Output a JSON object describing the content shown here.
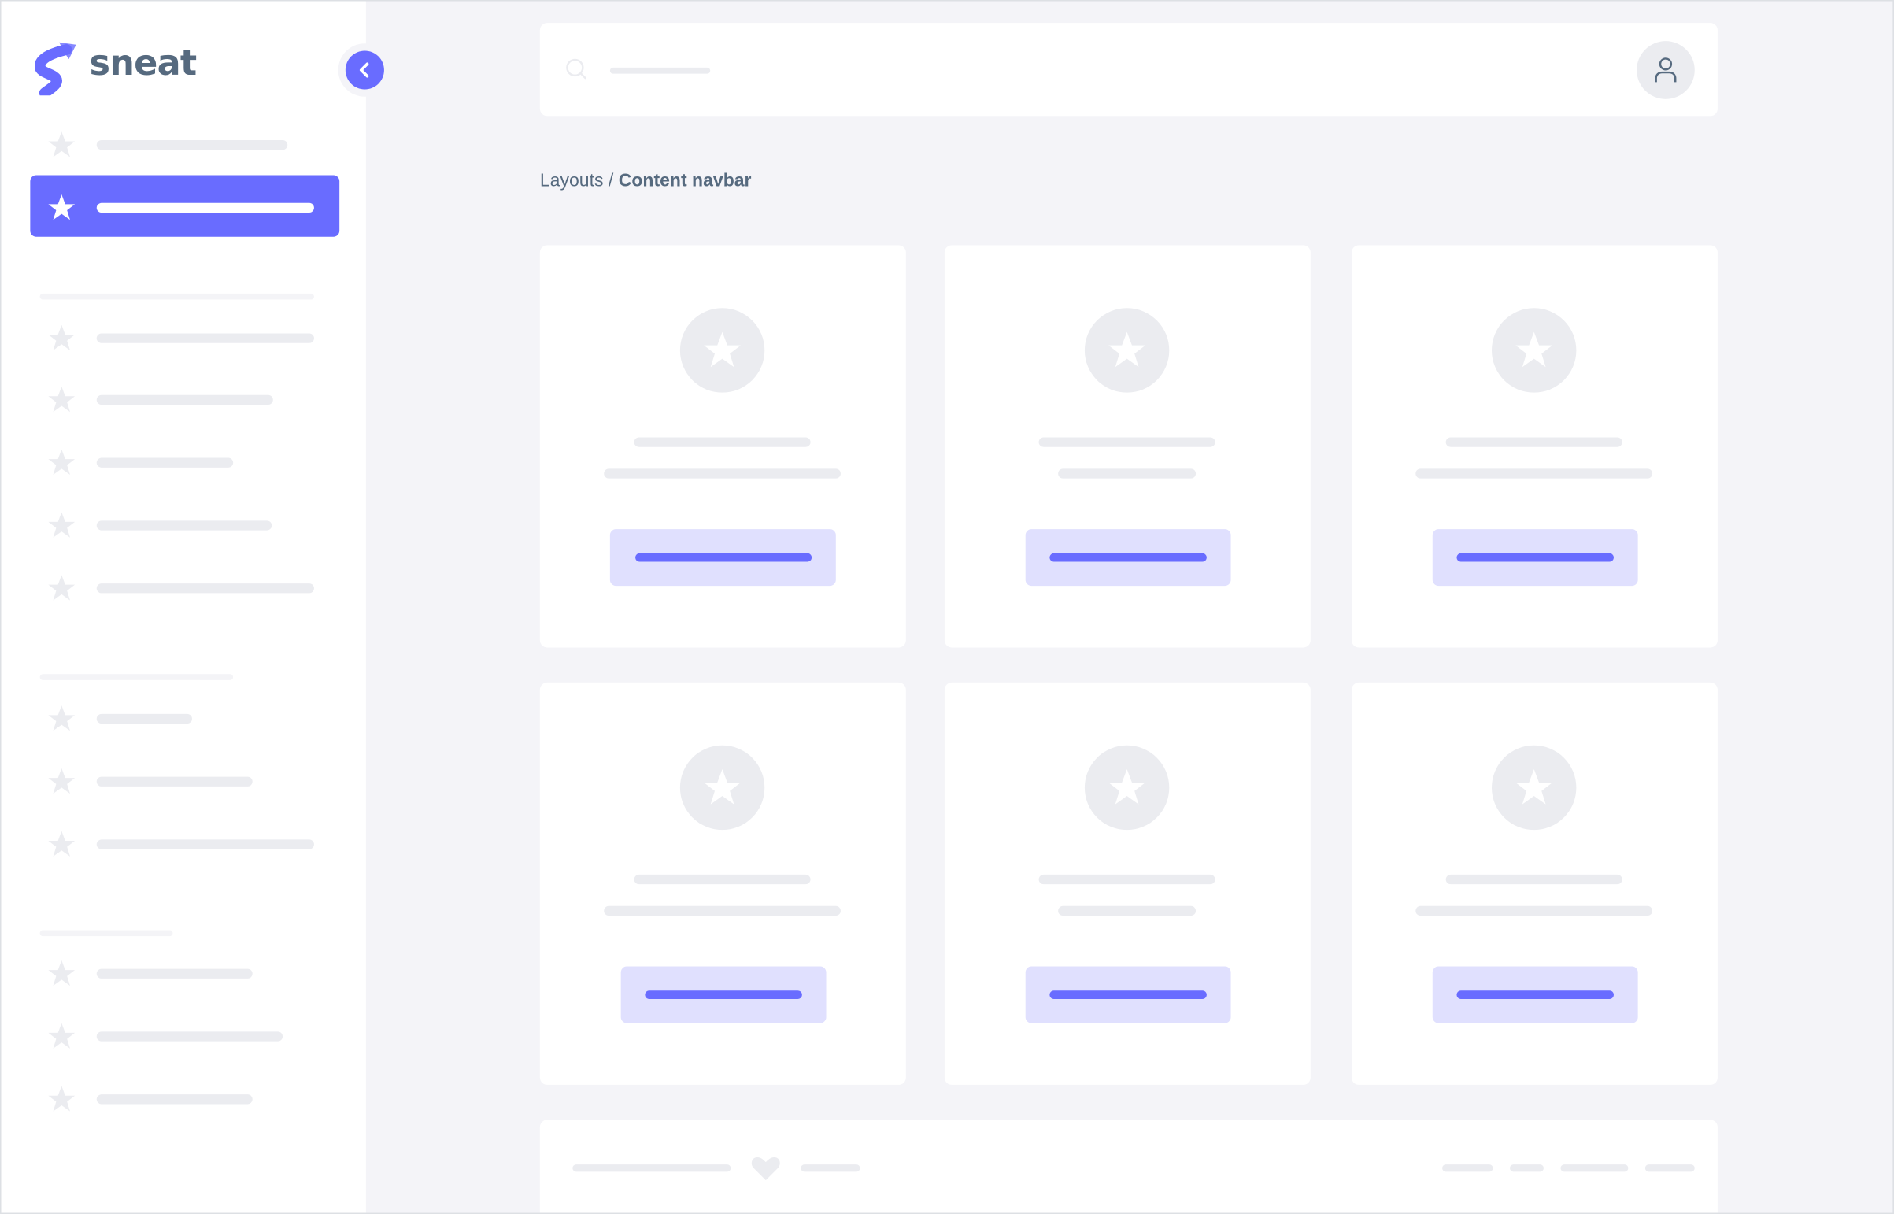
{
  "brand": {
    "name": "sneat",
    "logo_color": "#696cff"
  },
  "colors": {
    "primary": "#696cff",
    "primary_light": "#e0e0fe",
    "skeleton": "#ebecf0",
    "background": "#f4f4f8",
    "text": "#566a7f"
  },
  "sidebar": {
    "collapse_icon": "chevron-left-icon",
    "item_icon": "star-icon",
    "active_index": 1
  },
  "navbar": {
    "search_icon": "search-icon",
    "user_icon": "user-icon"
  },
  "breadcrumb": {
    "parent": "Layouts",
    "separator": " / ",
    "current": "Content navbar"
  },
  "footer": {
    "heart_icon": "heart-icon"
  }
}
